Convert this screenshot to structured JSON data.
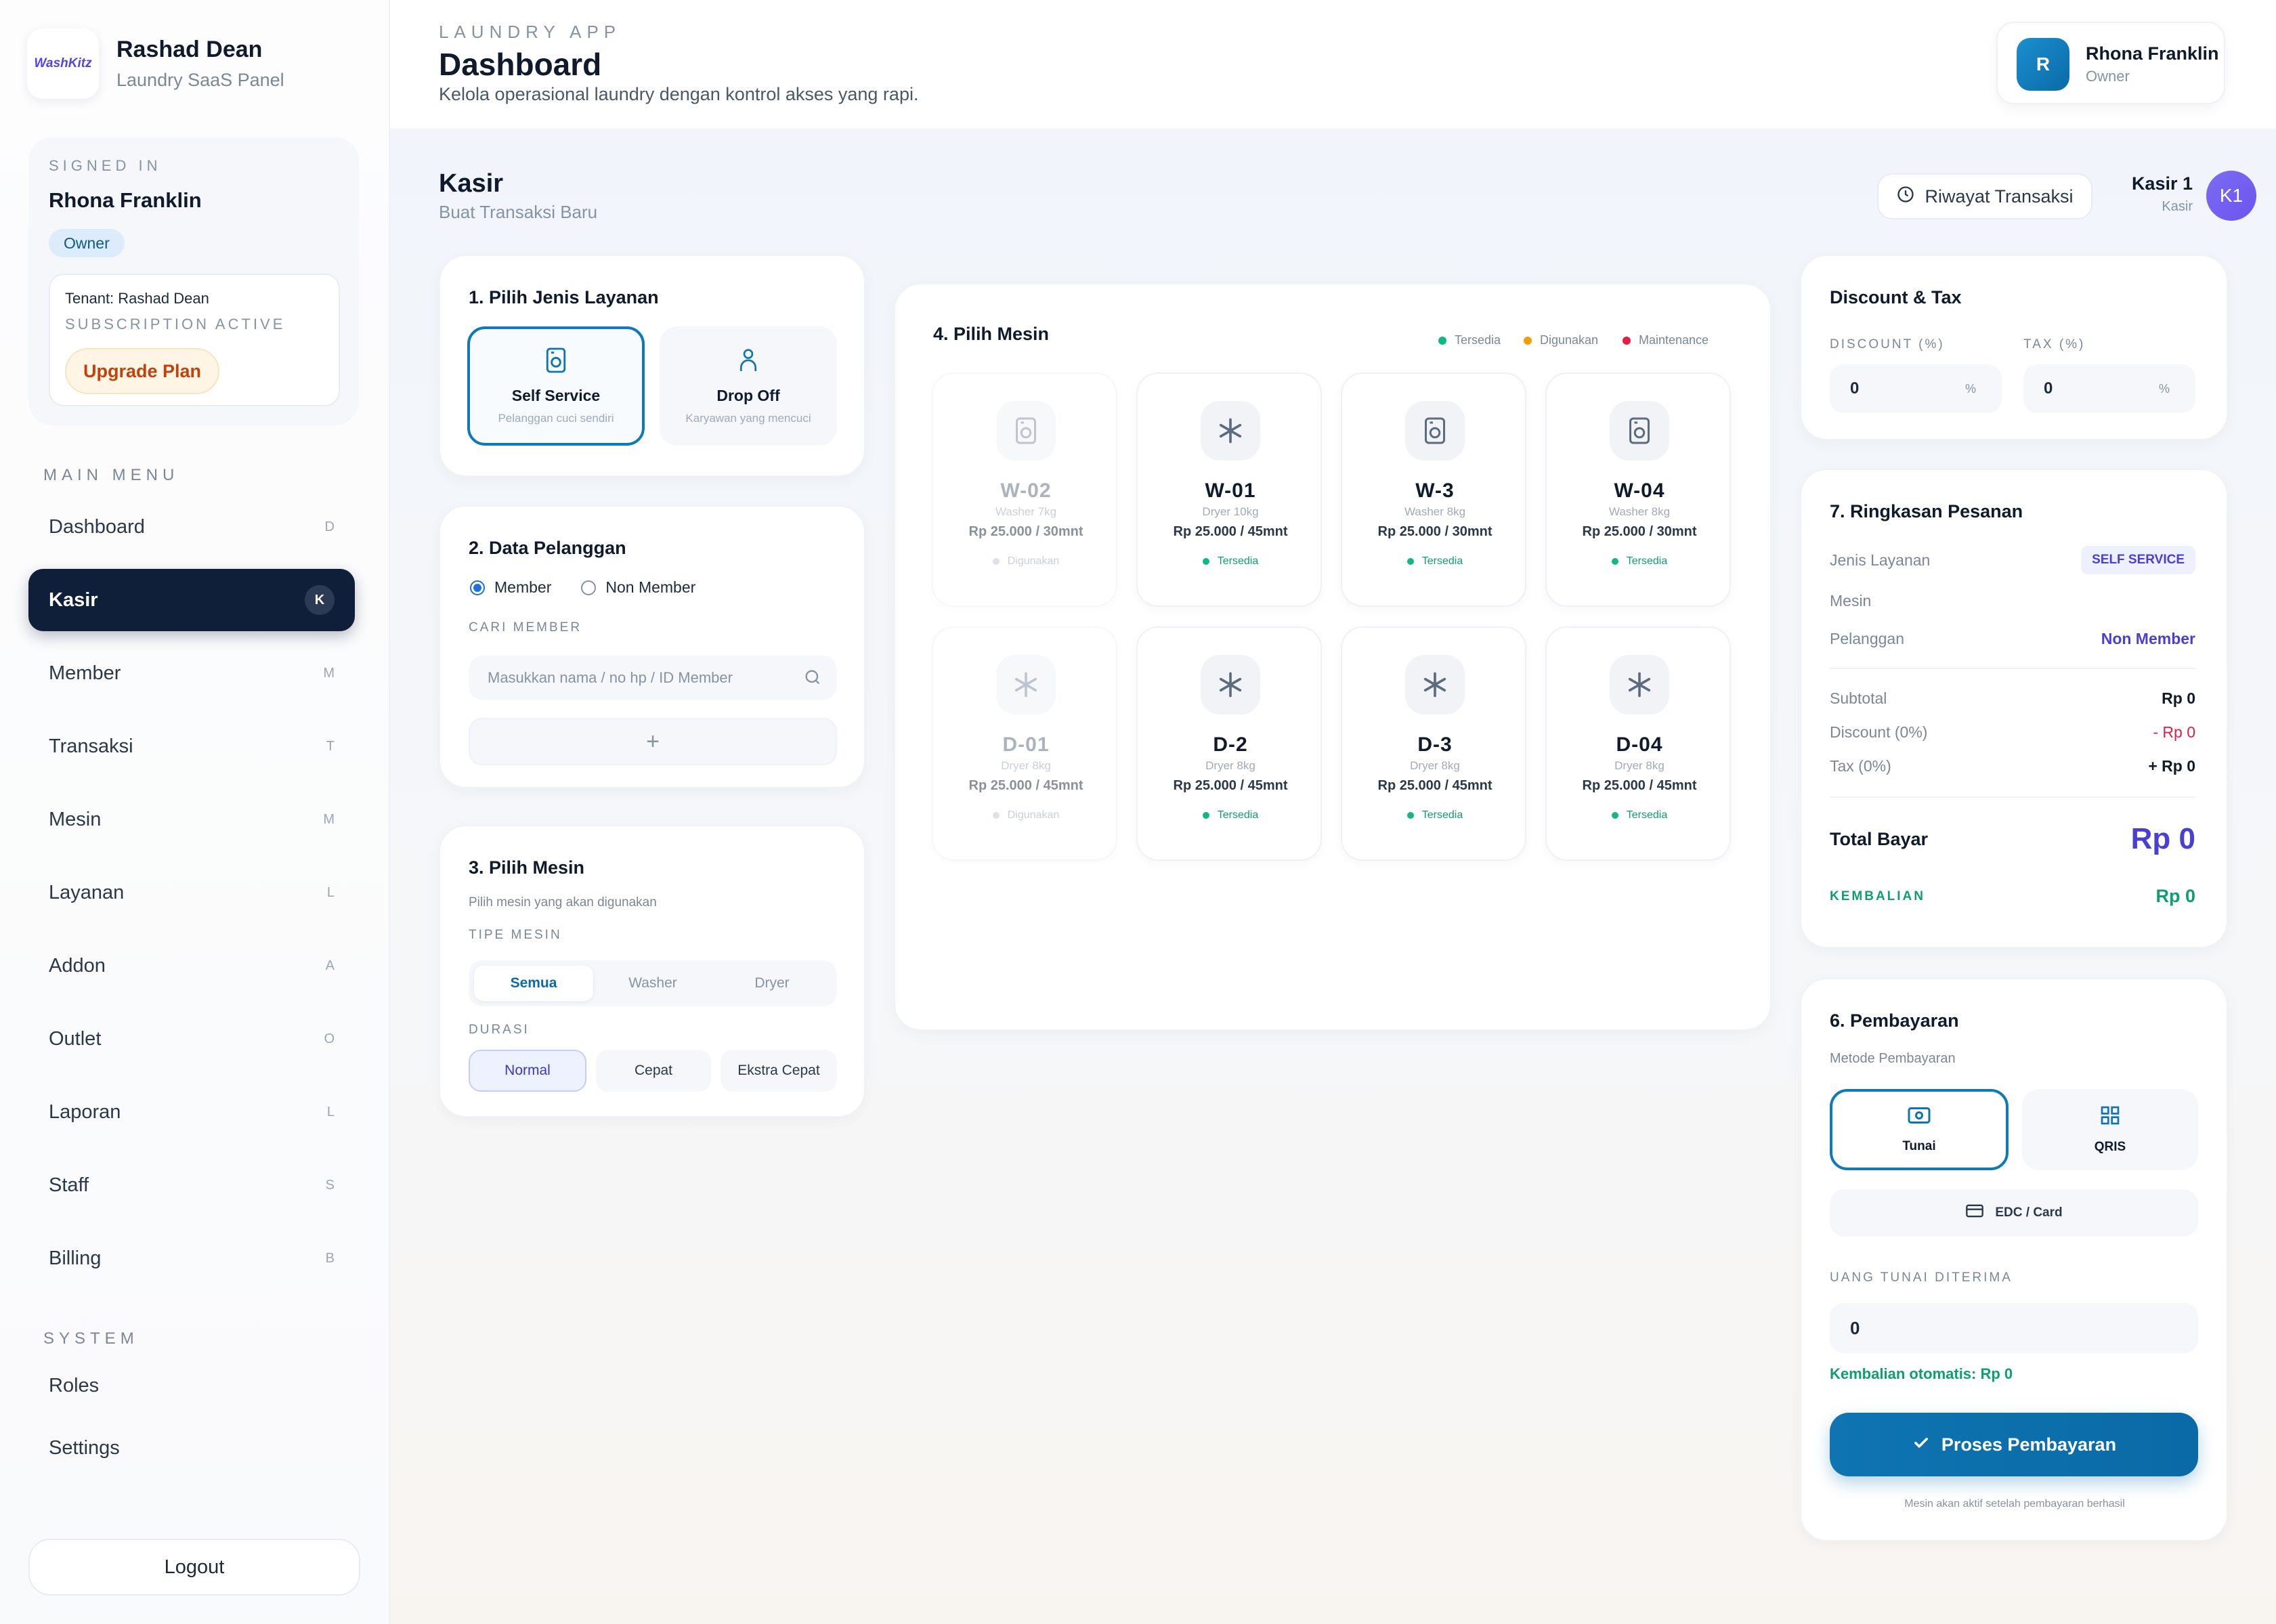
{
  "sidebar": {
    "brand_logo_text": "WashKitz",
    "brand_name": "Rashad Dean",
    "brand_sub": "Laundry SaaS Panel",
    "signed_in_label": "SIGNED IN",
    "user_name": "Rhona Franklin",
    "role": "Owner",
    "tenant": "Tenant: Rashad Dean",
    "subscription": "SUBSCRIPTION ACTIVE",
    "upgrade_label": "Upgrade Plan",
    "main_menu_label": "MAIN MENU",
    "menu": [
      {
        "label": "Dashboard",
        "key": "D"
      },
      {
        "label": "Kasir",
        "key": "K",
        "active": true
      },
      {
        "label": "Member",
        "key": "M"
      },
      {
        "label": "Transaksi",
        "key": "T"
      },
      {
        "label": "Mesin",
        "key": "M"
      },
      {
        "label": "Layanan",
        "key": "L"
      },
      {
        "label": "Addon",
        "key": "A"
      },
      {
        "label": "Outlet",
        "key": "O"
      },
      {
        "label": "Laporan",
        "key": "L"
      },
      {
        "label": "Staff",
        "key": "S"
      },
      {
        "label": "Billing",
        "key": "B"
      }
    ],
    "system_label": "SYSTEM",
    "system_menu": [
      {
        "label": "Roles"
      },
      {
        "label": "Settings"
      }
    ],
    "logout_label": "Logout"
  },
  "header": {
    "app_label": "LAUNDRY APP",
    "title": "Dashboard",
    "description": "Kelola operasional laundry dengan kontrol akses yang rapi.",
    "user_initial": "R",
    "user_name": "Rhona Franklin",
    "user_role": "Owner"
  },
  "page": {
    "title": "Kasir",
    "subtitle": "Buat Transaksi Baru",
    "history_label": "Riwayat Transaksi",
    "cashier_name": "Kasir 1",
    "cashier_role": "Kasir",
    "cashier_initials": "K1"
  },
  "service": {
    "title": "1. Pilih Jenis Layanan",
    "options": [
      {
        "name": "Self Service",
        "desc": "Pelanggan cuci sendiri",
        "selected": true
      },
      {
        "name": "Drop Off",
        "desc": "Karyawan yang mencuci",
        "selected": false
      }
    ]
  },
  "customer": {
    "title": "2. Data Pelanggan",
    "radio_member": "Member",
    "radio_non_member": "Non Member",
    "selected": "Member",
    "search_label": "CARI MEMBER",
    "search_placeholder": "Masukkan nama / no hp / ID Member",
    "search_value": "",
    "add_symbol": "+"
  },
  "machine_filter": {
    "title": "3. Pilih Mesin",
    "hint": "Pilih mesin yang akan digunakan",
    "type_label": "TIPE MESIN",
    "types": [
      "Semua",
      "Washer",
      "Dryer"
    ],
    "selected_type": "Semua",
    "duration_label": "DURASI",
    "durations": [
      "Normal",
      "Cepat",
      "Ekstra Cepat"
    ],
    "selected_duration": "Normal"
  },
  "machines": {
    "title": "4. Pilih Mesin",
    "legend": [
      {
        "label": "Tersedia",
        "color": "#10b981"
      },
      {
        "label": "Digunakan",
        "color": "#f59e0b"
      },
      {
        "label": "Maintenance",
        "color": "#e11d48"
      }
    ],
    "items": [
      {
        "code": "W-02",
        "spec": "Washer 7kg",
        "price": "Rp 25.000 / 30mnt",
        "status": "Digunakan",
        "icon": "washer-icon"
      },
      {
        "code": "W-01",
        "spec": "Dryer 10kg",
        "price": "Rp 25.000 / 45mnt",
        "status": "Tersedia",
        "icon": "dryer-icon"
      },
      {
        "code": "W-3",
        "spec": "Washer 8kg",
        "price": "Rp 25.000 / 30mnt",
        "status": "Tersedia",
        "icon": "washer-icon"
      },
      {
        "code": "W-04",
        "spec": "Washer 8kg",
        "price": "Rp 25.000 / 30mnt",
        "status": "Tersedia",
        "icon": "washer-icon"
      },
      {
        "code": "D-01",
        "spec": "Dryer 8kg",
        "price": "Rp 25.000 / 45mnt",
        "status": "Digunakan",
        "icon": "dryer-icon"
      },
      {
        "code": "D-2",
        "spec": "Dryer 8kg",
        "price": "Rp 25.000 / 45mnt",
        "status": "Tersedia",
        "icon": "dryer-icon"
      },
      {
        "code": "D-3",
        "spec": "Dryer 8kg",
        "price": "Rp 25.000 / 45mnt",
        "status": "Tersedia",
        "icon": "dryer-icon"
      },
      {
        "code": "D-04",
        "spec": "Dryer 8kg",
        "price": "Rp 25.000 / 45mnt",
        "status": "Tersedia",
        "icon": "dryer-icon"
      }
    ]
  },
  "discount_tax": {
    "title": "Discount & Tax",
    "discount_label": "DISCOUNT (%)",
    "discount_value": "0",
    "tax_label": "TAX (%)",
    "tax_value": "0",
    "unit": "%"
  },
  "summary": {
    "title": "7. Ringkasan Pesanan",
    "service_label": "Jenis Layanan",
    "service_value": "SELF SERVICE",
    "machine_label": "Mesin",
    "customer_label": "Pelanggan",
    "customer_value": "Non Member",
    "subtotal_label": "Subtotal",
    "subtotal_value": "Rp 0",
    "discount_label": "Discount (0%)",
    "discount_value": "- Rp 0",
    "tax_label": "Tax (0%)",
    "tax_value": "+ Rp 0",
    "total_label": "Total Bayar",
    "total_value": "Rp 0",
    "change_label": "KEMBALIAN",
    "change_value": "Rp 0"
  },
  "payment": {
    "title": "6. Pembayaran",
    "method_label": "Metode Pembayaran",
    "methods": [
      {
        "label": "Tunai",
        "selected": true
      },
      {
        "label": "QRIS",
        "selected": false
      }
    ],
    "edc_label": "EDC / Card",
    "cash_label": "UANG TUNAI DITERIMA",
    "cash_value": "0",
    "auto_change": "Kembalian otomatis: Rp 0",
    "process_label": "Proses Pembayaran",
    "note": "Mesin akan aktif setelah pembayaran berhasil"
  },
  "colors": {
    "accent": "#0e74b2",
    "sidebar_active": "#0f1f3a",
    "available": "#10b981",
    "in_use": "#f59e0b",
    "maintenance": "#e11d48",
    "total": "#4a3fd3",
    "change": "#0f9e6e",
    "discount": "#e11d48"
  }
}
